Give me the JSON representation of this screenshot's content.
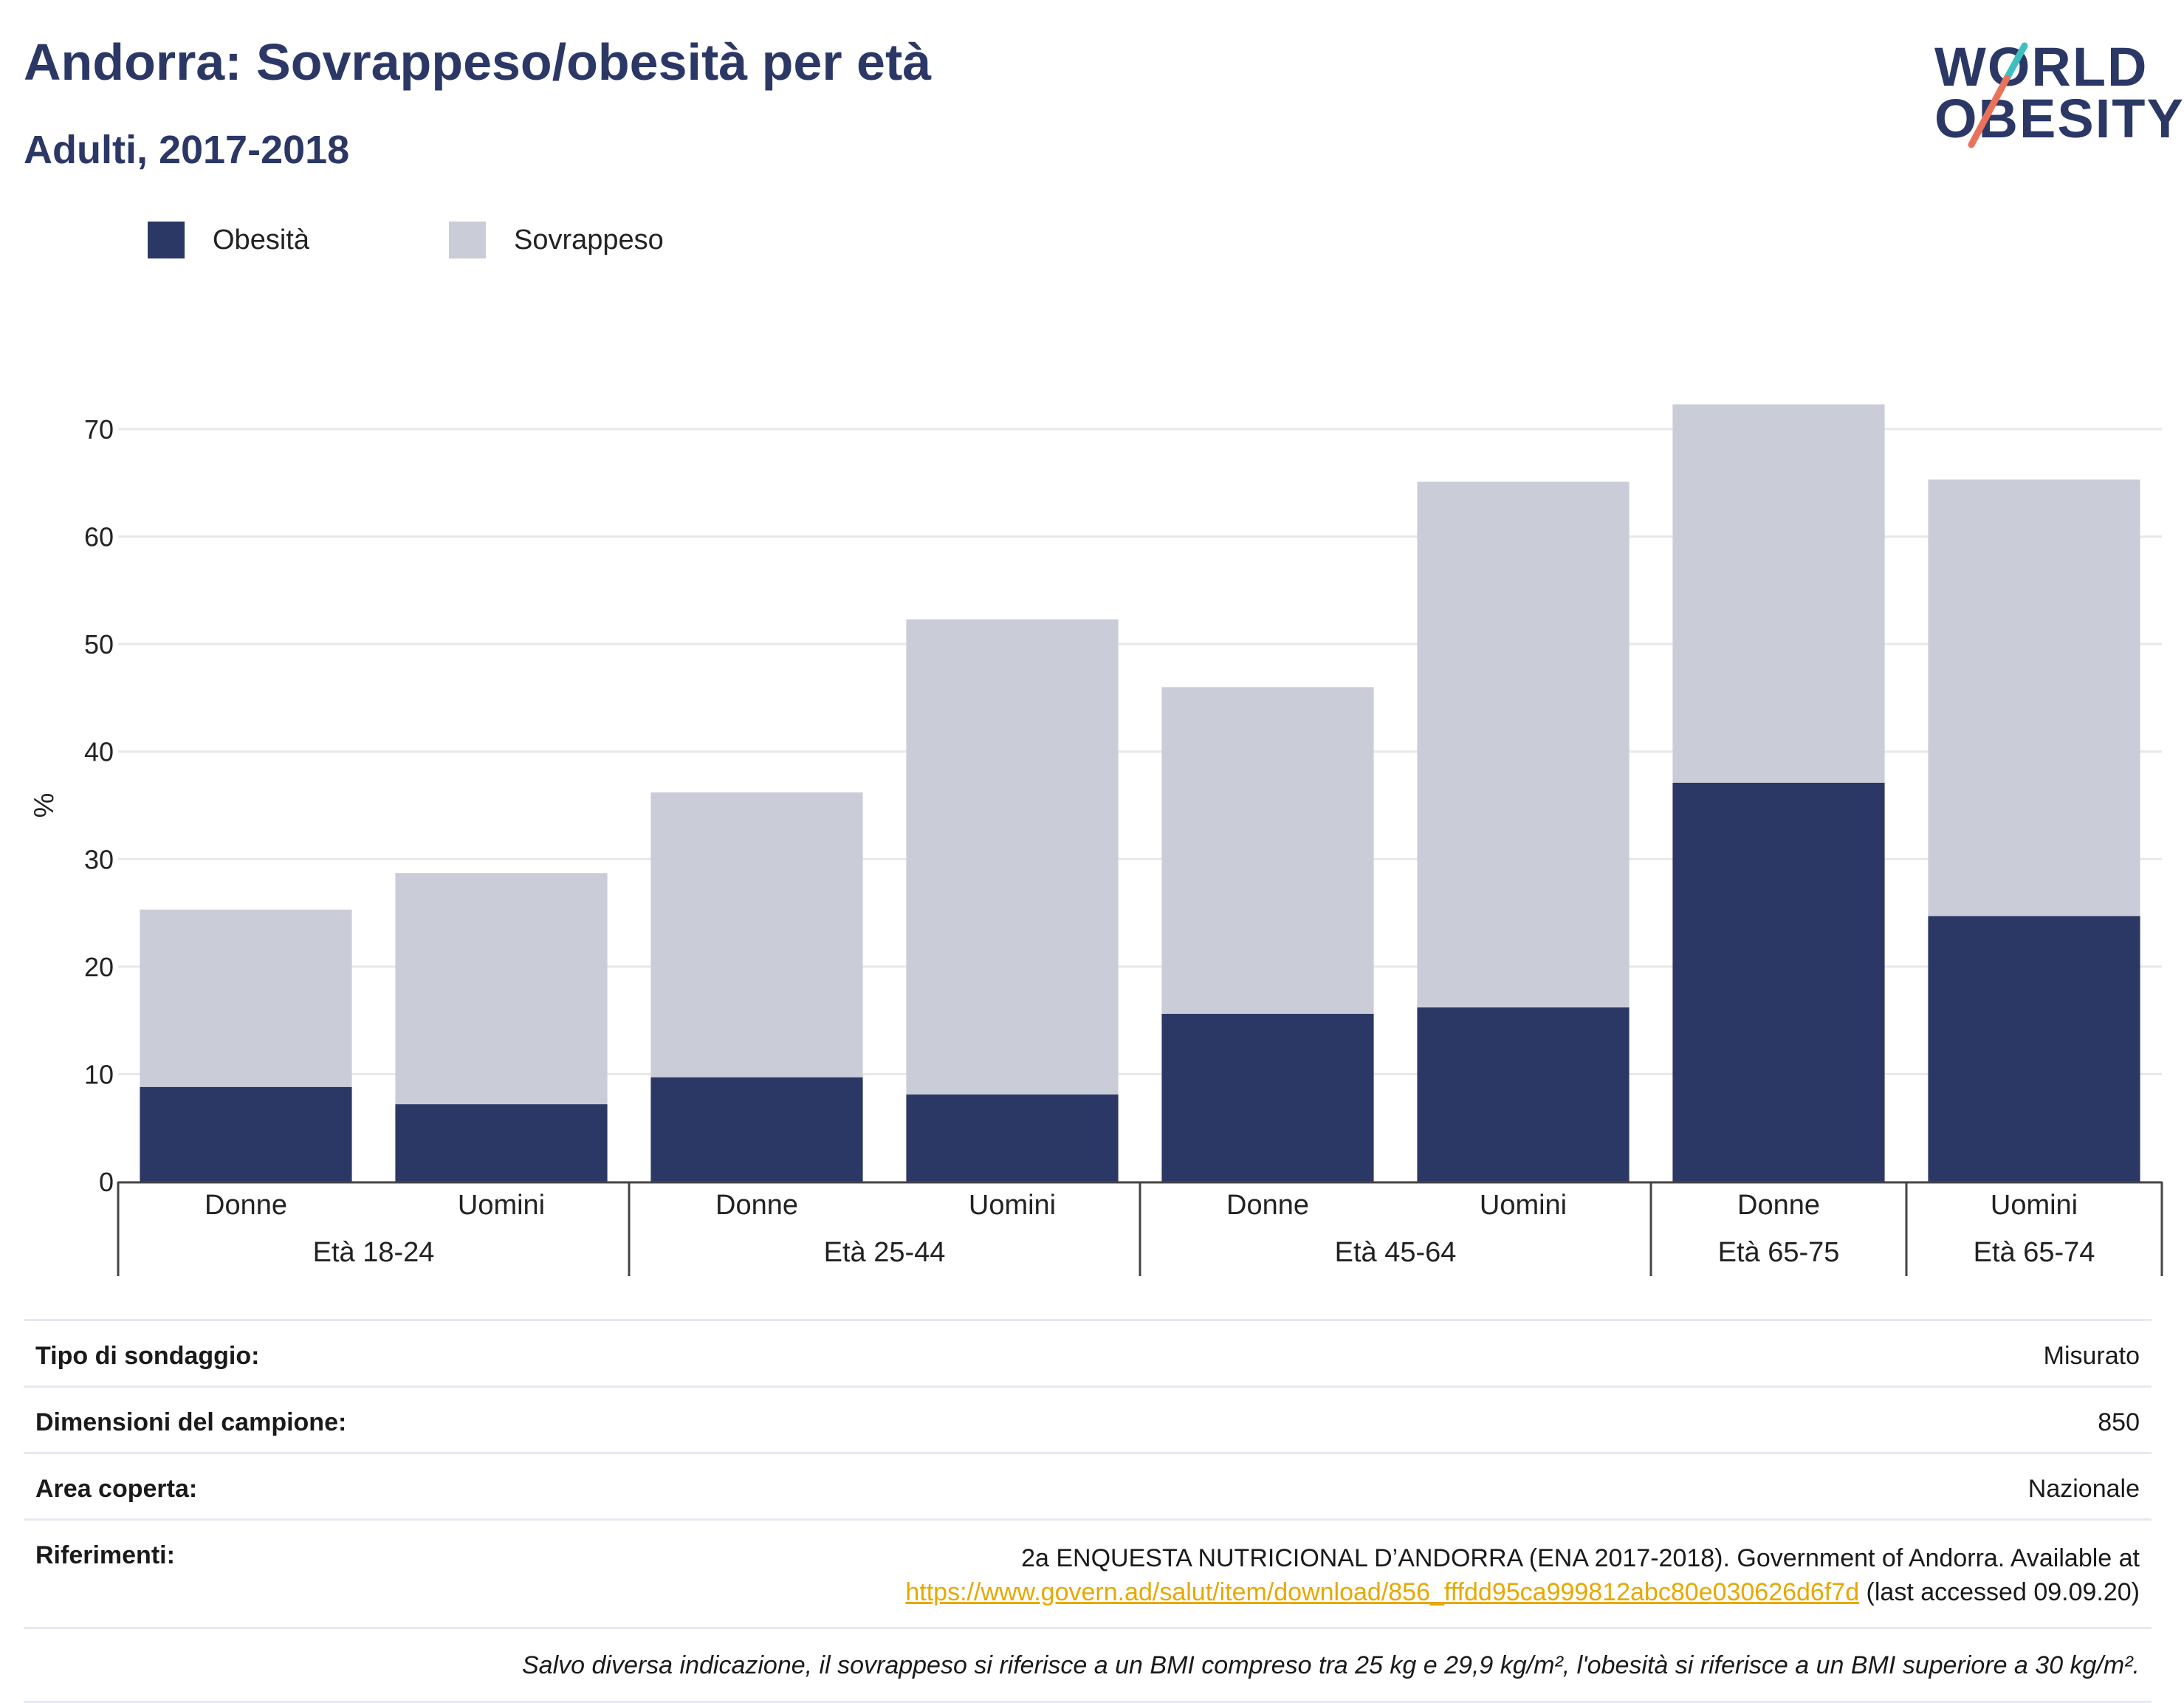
{
  "header": {
    "title": "Andorra: Sovrappeso/obesità per età",
    "subtitle": "Adulti, 2017-2018"
  },
  "logo": {
    "line1": "WORLD",
    "line2": "OBESITY",
    "accent": "#e8735a",
    "accent2": "#3dbfbf"
  },
  "colors": {
    "obesity": "#2b3866",
    "overweight": "#cacdd8",
    "grid": "#e8e8ec",
    "axis": "#444444"
  },
  "legend": {
    "obesity_label": "Obesità",
    "overweight_label": "Sovrappeso"
  },
  "chart_data": {
    "type": "bar",
    "stacked": true,
    "ylabel": "%",
    "ylim": [
      0,
      75
    ],
    "yticks": [
      0,
      10,
      20,
      30,
      40,
      50,
      60,
      70
    ],
    "grid": true,
    "legend_position": "top-left",
    "categories": [
      "Donne",
      "Uomini",
      "Donne",
      "Uomini",
      "Donne",
      "Uomini",
      "Donne",
      "Uomini"
    ],
    "groups": [
      {
        "label": "Età 18-24",
        "count": 2
      },
      {
        "label": "Età 25-44",
        "count": 2
      },
      {
        "label": "Età 45-64",
        "count": 2
      },
      {
        "label": "Età 65-75",
        "count": 1
      },
      {
        "label": "Età 65-74",
        "count": 1
      }
    ],
    "series": [
      {
        "name": "Obesità",
        "values": [
          8.8,
          7.2,
          9.7,
          8.1,
          15.6,
          16.2,
          37.1,
          24.7
        ]
      },
      {
        "name": "Sovrappeso",
        "values": [
          16.5,
          21.5,
          26.5,
          44.2,
          30.4,
          48.9,
          35.2,
          40.6
        ]
      }
    ]
  },
  "info": {
    "survey_type_label": "Tipo di sondaggio:",
    "survey_type_value": "Misurato",
    "sample_size_label": "Dimensioni del campione:",
    "sample_size_value": "850",
    "area_label": "Area coperta:",
    "area_value": "Nazionale",
    "references_label": "Riferimenti:",
    "references_text": "2a ENQUESTA NUTRICIONAL D’ANDORRA (ENA 2017-2018). Government of Andorra. Available at",
    "references_link": "https://www.govern.ad/salut/item/download/856_fffdd95ca999812abc80e030626d6f7d",
    "references_suffix": " (last accessed 09.09.20)",
    "note": "Salvo diversa indicazione, il sovrappeso si riferisce a un BMI compreso tra 25 kg e 29,9 kg/m², l'obesità si riferisce a un BMI superiore a 30 kg/m²."
  }
}
